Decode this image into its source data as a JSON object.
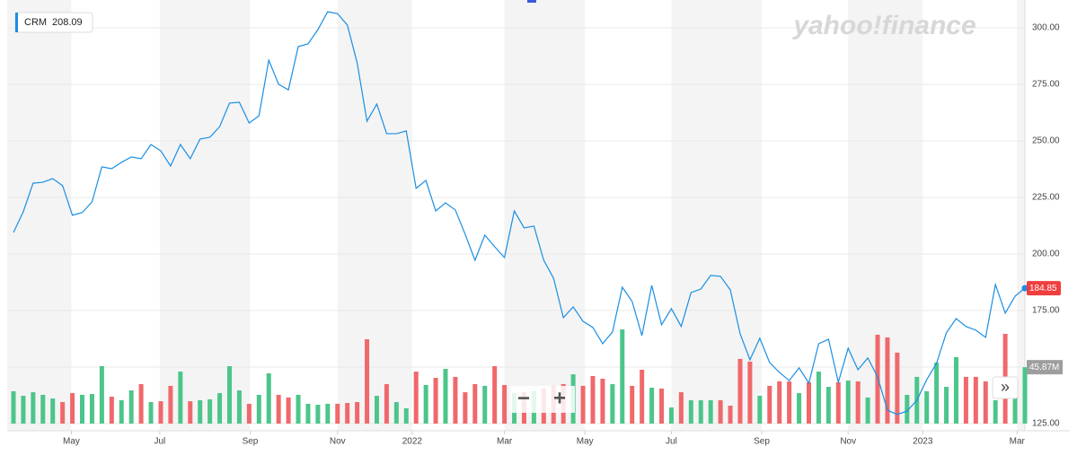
{
  "chart_data": {
    "type": "line",
    "logo": "yahoo!finance",
    "crosshair_value": 208.09,
    "xlim": [
      0,
      103
    ],
    "xticks": [
      {
        "value": 5.9,
        "label": "May"
      },
      {
        "value": 14.9,
        "label": "Jul"
      },
      {
        "value": 24.1,
        "label": "Sep"
      },
      {
        "value": 33.0,
        "label": "Nov"
      },
      {
        "value": 40.6,
        "label": "2022"
      },
      {
        "value": 50.0,
        "label": "Mar"
      },
      {
        "value": 58.2,
        "label": "May"
      },
      {
        "value": 67.0,
        "label": "Jul"
      },
      {
        "value": 76.2,
        "label": "Sep"
      },
      {
        "value": 85.0,
        "label": "Nov"
      },
      {
        "value": 92.6,
        "label": "2023"
      },
      {
        "value": 102.2,
        "label": "Mar"
      }
    ],
    "ylim": [
      121.8,
      312.3
    ],
    "yticks": [
      {
        "value": 125,
        "label": "125.00"
      },
      {
        "value": 150,
        "label": "150.00"
      },
      {
        "value": 175,
        "label": "175.00"
      },
      {
        "value": 200,
        "label": "200.00"
      },
      {
        "value": 225,
        "label": "225.00"
      },
      {
        "value": 250,
        "label": "250.00"
      },
      {
        "value": 275,
        "label": "275.00"
      },
      {
        "value": 300,
        "label": "300.00"
      }
    ],
    "y2lim": [
      0,
      100
    ],
    "grid": true,
    "up_color": "#4cc58a",
    "down_color": "#f0686b",
    "series": [
      {
        "name": "CRM",
        "color": "#1a8fe3",
        "values": [
          209.5,
          218.7,
          231.3,
          231.7,
          233.3,
          230.2,
          217.1,
          218.3,
          223,
          238.5,
          237.7,
          240.5,
          242.9,
          242.1,
          248.4,
          245.6,
          238.9,
          248.4,
          242.1,
          250.8,
          251.6,
          256.3,
          266.7,
          267.1,
          257.9,
          261.1,
          285.7,
          275,
          272.6,
          291.7,
          292.9,
          299.2,
          307.1,
          306.3,
          301.2,
          284.5,
          258.7,
          266.3,
          253.2,
          253.2,
          254.4,
          229,
          232.5,
          219,
          222.6,
          219.4,
          208.7,
          197.2,
          208.3,
          203.2,
          198.4,
          219,
          211.5,
          212.3,
          197.2,
          189.3,
          171.8,
          176.6,
          170.2,
          167.5,
          160.3,
          165.5,
          185.3,
          179,
          163.9,
          186.1,
          168.7,
          175.8,
          167.9,
          182.9,
          184.5,
          190.5,
          190.1,
          184.1,
          164.7,
          153.2,
          162.7,
          152,
          147.6,
          144,
          149.6,
          142.9,
          160.3,
          162.3,
          143.3,
          158.3,
          148.8,
          154,
          145.6,
          130.9,
          129,
          130.5,
          135.3,
          144.4,
          151.6,
          165.1,
          171.4,
          167.9,
          166.3,
          163.1,
          186.5,
          173.8,
          181.3,
          184.85
        ]
      },
      {
        "type": "bar",
        "axis": "y2",
        "values": [
          26.3,
          22.6,
          25.5,
          23.4,
          20.4,
          17.5,
          24.8,
          23.4,
          24.1,
          46.7,
          21.9,
          19.0,
          27.0,
          32.1,
          17.5,
          18.2,
          30.7,
          42.3,
          18.2,
          19.0,
          19.7,
          24.8,
          46.7,
          27.0,
          16.1,
          23.4,
          40.9,
          23.4,
          21.2,
          23.4,
          16.1,
          15.3,
          16.1,
          16.1,
          16.8,
          17.5,
          68.6,
          22.6,
          32.1,
          17.5,
          12.4,
          42.3,
          31.4,
          37.2,
          44.5,
          38.0,
          25.5,
          32.1,
          30.7,
          46.7,
          31.4,
          24.8,
          25.5,
          26.3,
          28.5,
          30.7,
          32.1,
          40.1,
          30.7,
          38.7,
          36.5,
          32.1,
          76.6,
          30.7,
          43.8,
          29.2,
          28.5,
          13.1,
          25.5,
          19.0,
          19.0,
          19.0,
          19.0,
          14.6,
          52.6,
          50.4,
          22.6,
          30.7,
          34.3,
          34.3,
          24.8,
          33.6,
          42.3,
          29.9,
          33.6,
          35.0,
          34.3,
          21.2,
          72.3,
          70.1,
          57.7,
          23.4,
          38.0,
          26.3,
          49.6,
          29.9,
          54.0,
          38.0,
          38.0,
          34.3,
          19.0,
          73.0,
          30.0,
          45.87
        ],
        "value_labels": [
          null,
          null,
          null,
          null,
          null,
          null,
          null,
          null,
          null,
          null,
          null,
          null,
          null,
          null,
          null,
          null,
          null,
          null,
          null,
          null,
          null,
          null,
          null,
          null,
          null,
          null,
          null,
          null,
          null,
          null,
          null,
          null,
          null,
          null,
          null,
          null,
          null,
          null,
          null,
          null,
          null,
          null,
          null,
          null,
          null,
          null,
          null,
          null,
          null,
          null,
          null,
          null,
          null,
          null,
          null,
          null,
          null,
          null,
          null,
          null,
          null,
          null,
          null,
          null,
          null,
          null,
          null,
          null,
          null,
          null,
          null,
          null,
          null,
          null,
          null,
          null,
          null,
          null,
          null,
          null,
          null,
          null,
          null,
          null,
          null,
          null,
          null,
          null,
          null,
          null,
          null,
          null,
          null,
          null,
          null,
          null,
          null,
          null,
          null,
          null,
          null,
          null,
          null,
          "45.87M"
        ]
      }
    ]
  }
}
